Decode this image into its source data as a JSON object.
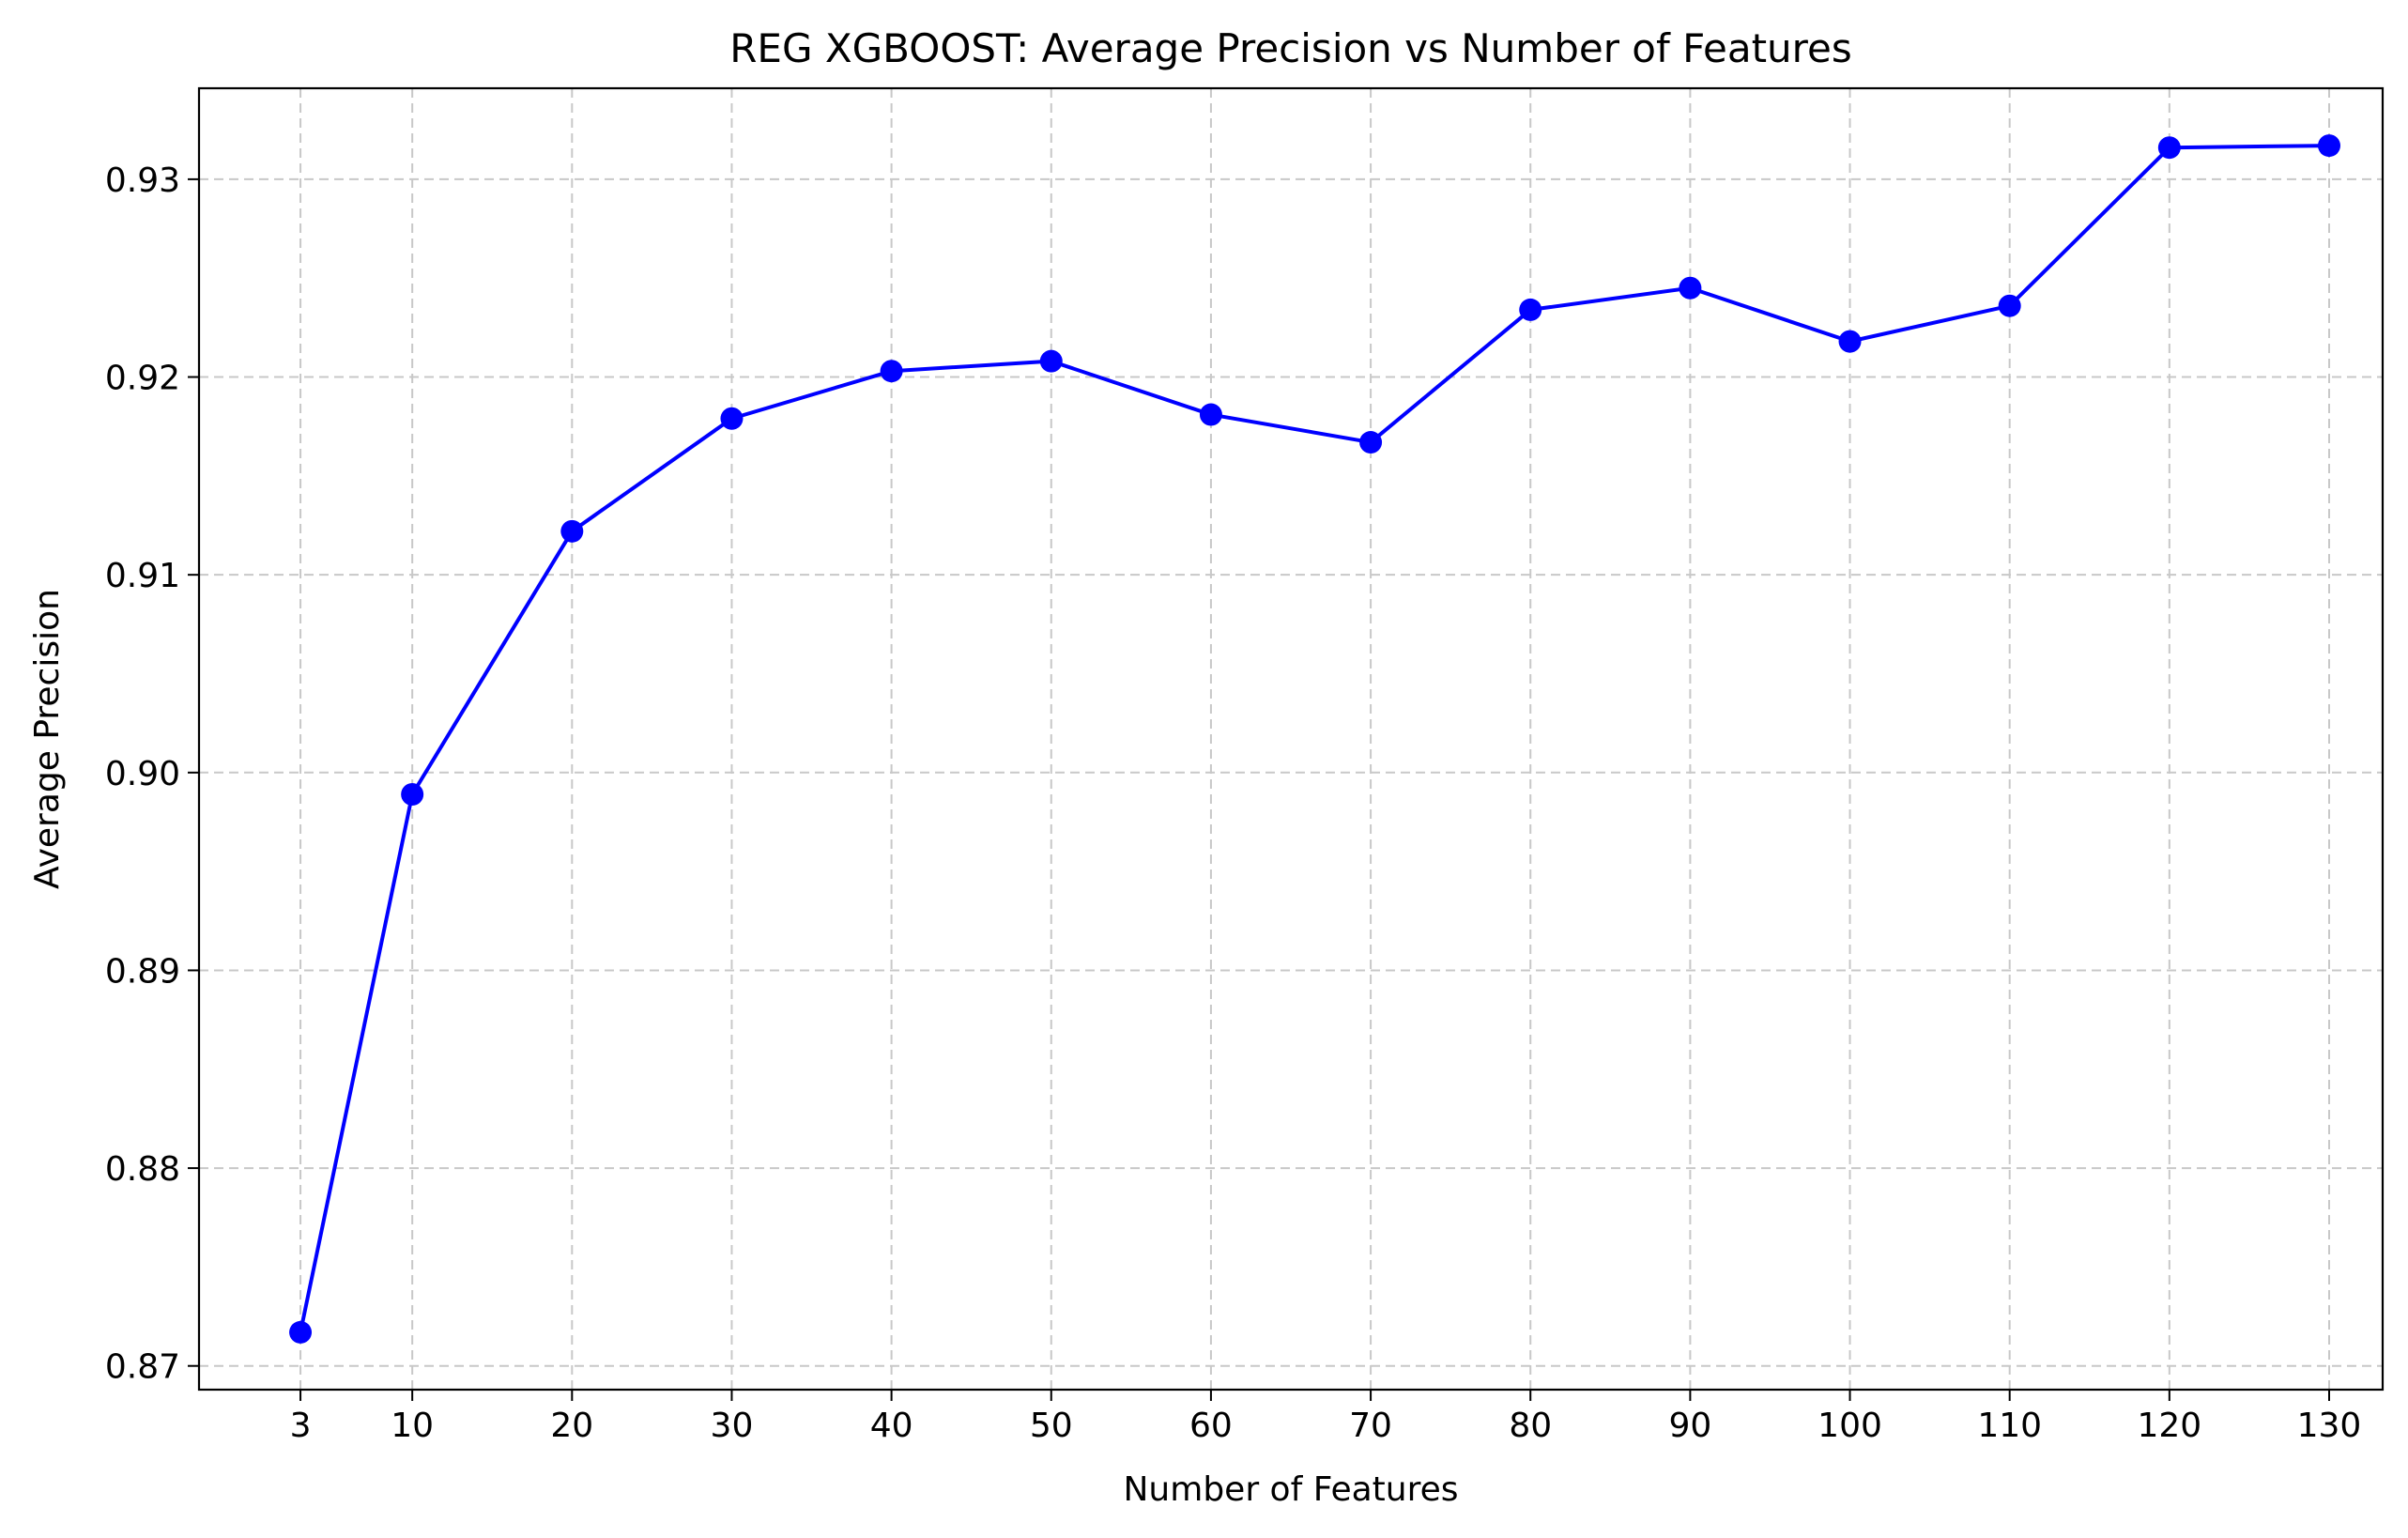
{
  "chart_data": {
    "type": "line",
    "title": "REG XGBOOST: Average Precision vs Number of Features",
    "xlabel": "Number of Features",
    "ylabel": "Average Precision",
    "x": [
      3,
      10,
      20,
      30,
      40,
      50,
      60,
      70,
      80,
      90,
      100,
      110,
      120,
      130
    ],
    "series": [
      {
        "values": [
          0.8717,
          0.8989,
          0.9122,
          0.9179,
          0.9203,
          0.9208,
          0.9181,
          0.9167,
          0.9234,
          0.9245,
          0.9218,
          0.9236,
          0.9316,
          0.9317
        ],
        "color": "#0000ff",
        "marker": "circle"
      }
    ],
    "xticks": [
      3,
      10,
      20,
      30,
      40,
      50,
      60,
      70,
      80,
      90,
      100,
      110,
      120,
      130
    ],
    "yticks": [
      "0.87",
      "0.88",
      "0.89",
      "0.90",
      "0.91",
      "0.92",
      "0.93"
    ],
    "xlim": [
      -3.35,
      133.35
    ],
    "ylim": [
      0.8688,
      0.9346
    ],
    "grid": true,
    "grid_style": "dashed",
    "grid_color": "#c8c8c8",
    "legend": "none"
  }
}
